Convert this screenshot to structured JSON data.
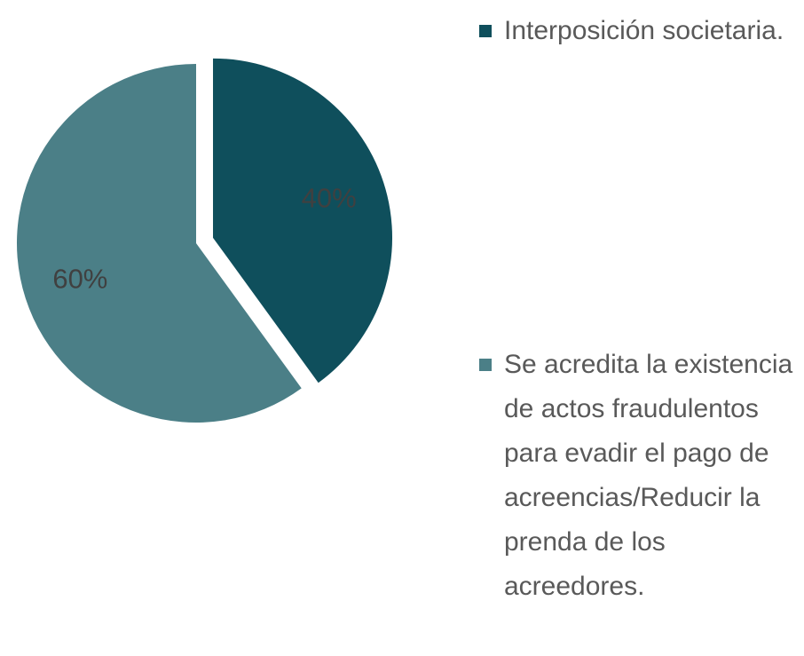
{
  "chart_data": {
    "type": "pie",
    "categories": [
      "Interposición societaria.",
      "Se acredita la existencia de actos fraudulentos para evadir el pago de acreencias/Reducir la prenda de los acreedores."
    ],
    "values": [
      40,
      60
    ],
    "value_labels": [
      "40%",
      "60%"
    ],
    "colors": [
      "#0f4f5c",
      "#4b7f87"
    ],
    "exploded": [
      true,
      false
    ],
    "legend": "right"
  }
}
